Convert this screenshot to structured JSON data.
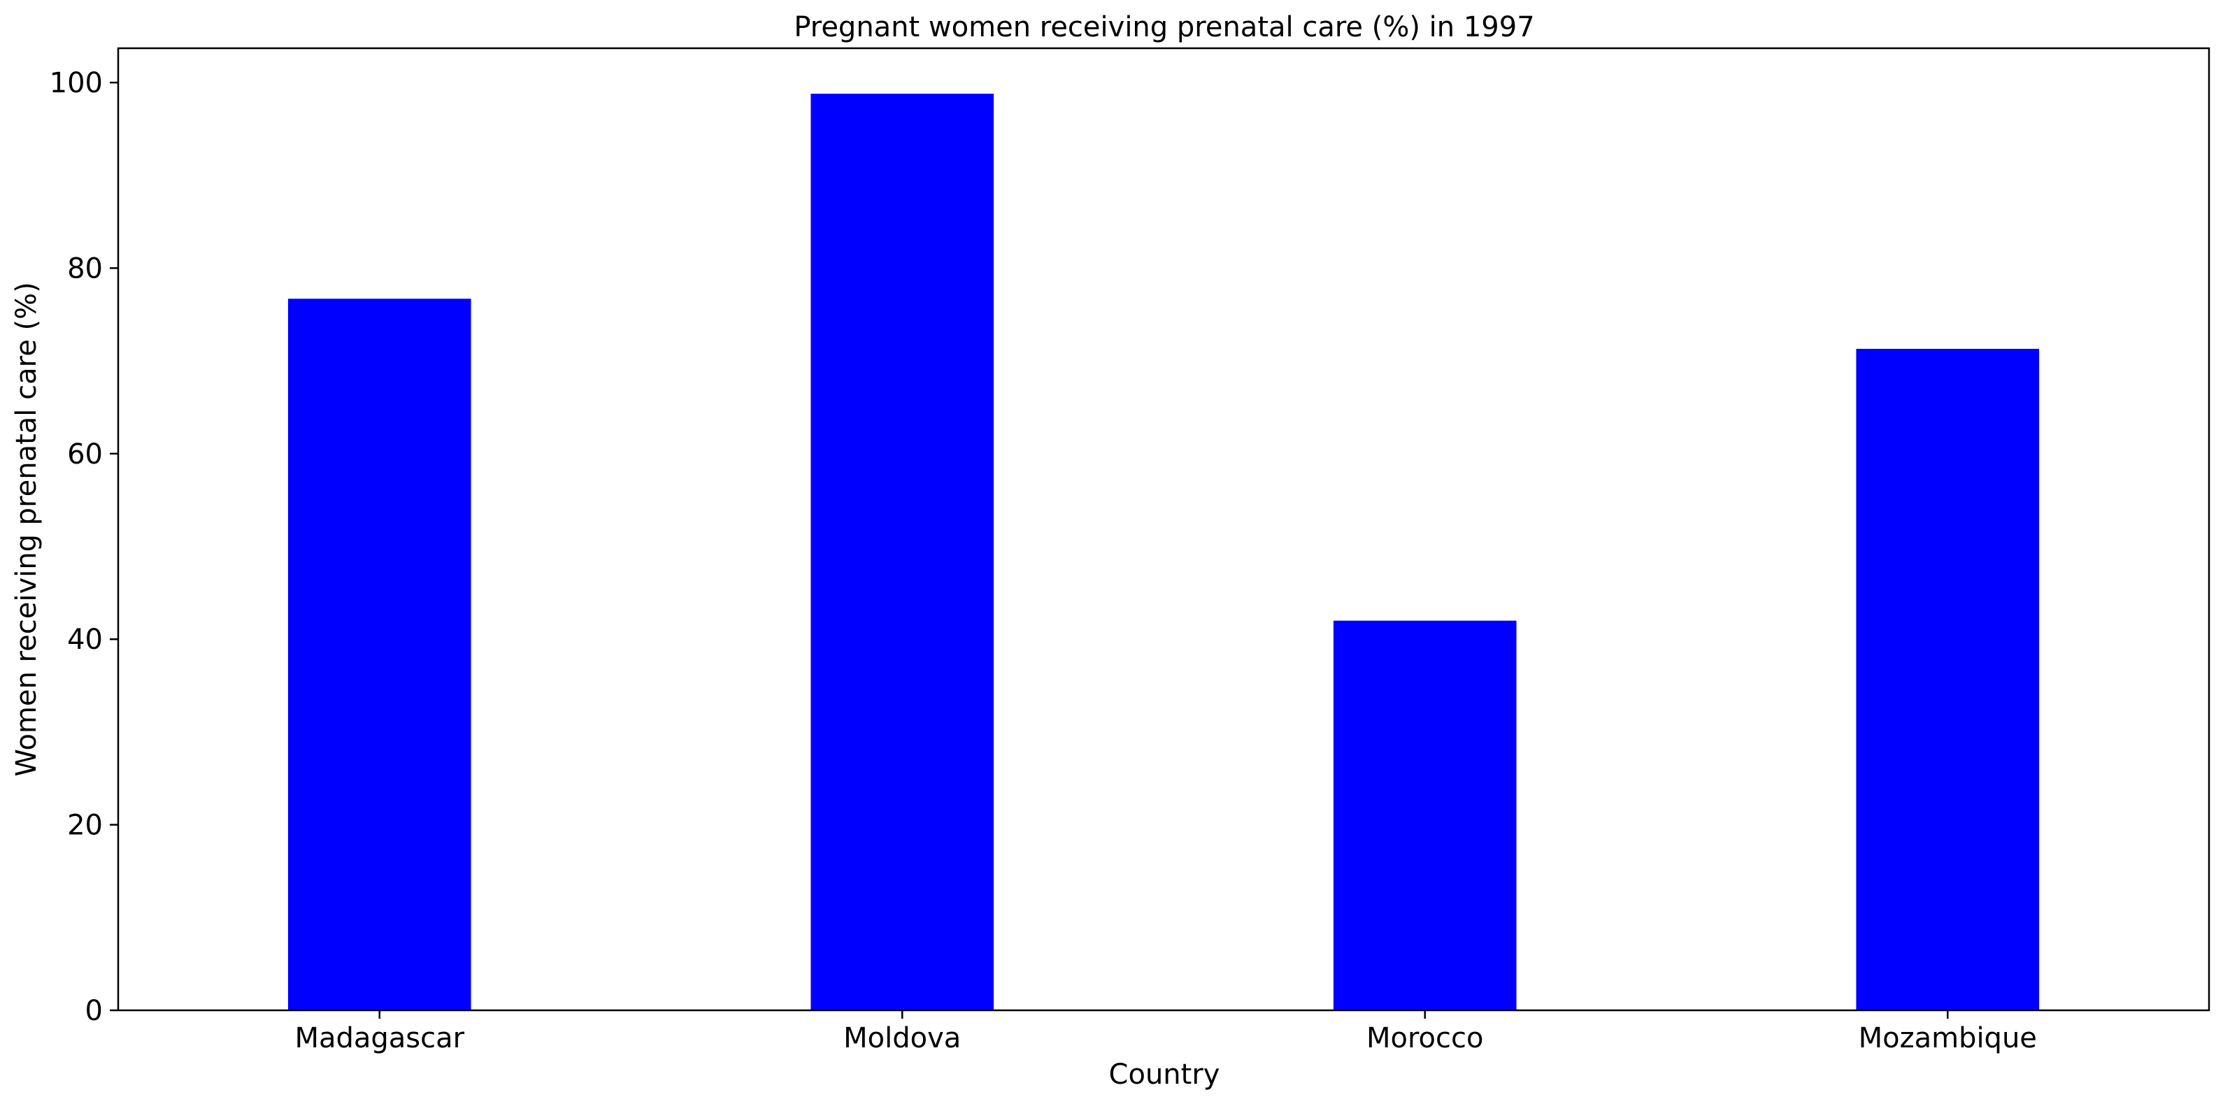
{
  "chart_data": {
    "type": "bar",
    "title": "Pregnant women receiving prenatal care (%) in 1997",
    "xlabel": "Country",
    "ylabel": "Women receiving prenatal care (%)",
    "categories": [
      "Madagascar",
      "Moldova",
      "Morocco",
      "Mozambique"
    ],
    "values": [
      76.7,
      98.8,
      42.0,
      71.3
    ],
    "ylim": [
      0,
      103.7
    ],
    "yticks": [
      0,
      20,
      40,
      60,
      80,
      100
    ],
    "grid": false,
    "bar_color": "#0000ff"
  }
}
